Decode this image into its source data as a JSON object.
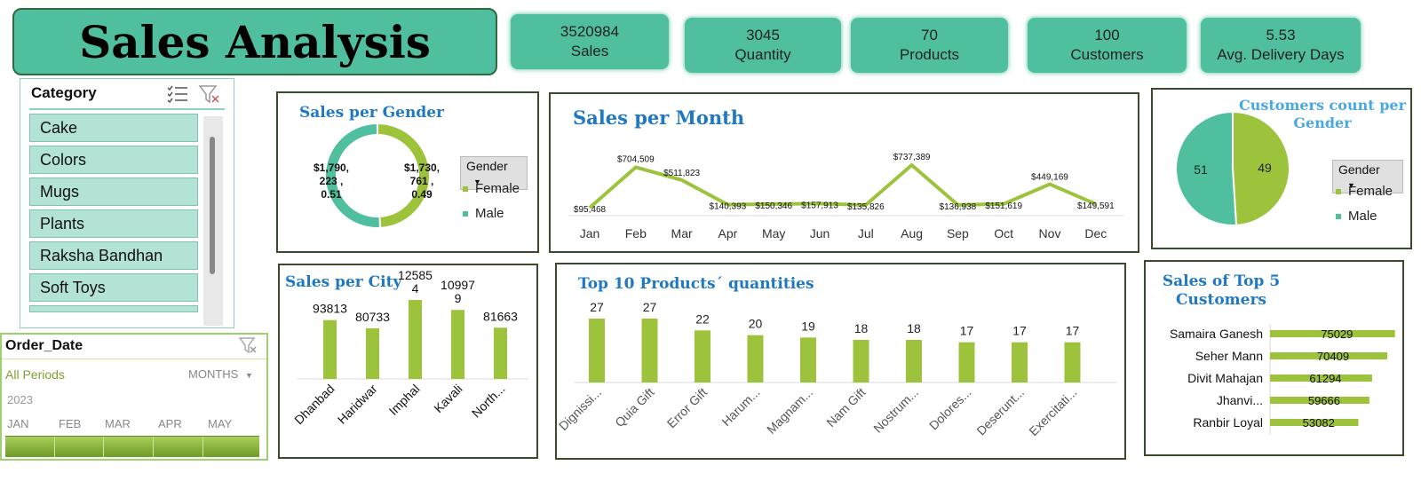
{
  "header": {
    "title": "Sales Analysis"
  },
  "kpis": [
    {
      "value": "3520984",
      "label": "Sales"
    },
    {
      "value": "3045",
      "label": "Quantity"
    },
    {
      "value": "70",
      "label": "Products"
    },
    {
      "value": "100",
      "label": "Customers"
    },
    {
      "value": "5.53",
      "label": "Avg. Delivery Days"
    }
  ],
  "category_slicer": {
    "title": "Category",
    "items": [
      "Cake",
      "Colors",
      "Mugs",
      "Plants",
      "Raksha Bandhan",
      "Soft Toys"
    ]
  },
  "timeline": {
    "title": "Order_Date",
    "period": "All Periods",
    "unit": "MONTHS",
    "year": "2023",
    "months": [
      "JAN",
      "FEB",
      "MAR",
      "APR",
      "MAY"
    ]
  },
  "colors": {
    "accent": "#4fbf9f",
    "bar": "#9dc33c",
    "title": "#1f78c1",
    "male": "#4fbf9f",
    "female": "#9dc33c"
  },
  "chart_data": [
    {
      "id": "sales_per_gender",
      "type": "pie",
      "title": "Sales per Gender",
      "legend_title": "Gender",
      "labels": [
        "Female",
        "Male"
      ],
      "values": [
        1730761,
        1790223
      ],
      "shares": [
        0.49,
        0.51
      ],
      "data_labels": [
        "$1,730,\n761 ,\n0.49",
        "$1,790,\n223 ,\n0.51"
      ]
    },
    {
      "id": "sales_per_month",
      "type": "line",
      "title": "Sales per Month",
      "categories": [
        "Jan",
        "Feb",
        "Mar",
        "Apr",
        "May",
        "Jun",
        "Jul",
        "Aug",
        "Sep",
        "Oct",
        "Nov",
        "Dec"
      ],
      "values": [
        95468,
        704509,
        511823,
        140393,
        150346,
        157913,
        135826,
        737389,
        136938,
        151619,
        449169,
        149591
      ],
      "labels": [
        "$95,468",
        "$704,509",
        "$511,823",
        "$140,393",
        "$150,346",
        "$157,913",
        "$135,826",
        "$737,389",
        "$136,938",
        "$151,619",
        "$449,169",
        "$149,591"
      ]
    },
    {
      "id": "customers_per_gender",
      "type": "pie",
      "title": "Customers count per Gender",
      "legend_title": "Gender",
      "labels": [
        "Female",
        "Male"
      ],
      "values": [
        49,
        51
      ]
    },
    {
      "id": "sales_per_city",
      "type": "bar",
      "title": "Sales per City",
      "categories": [
        "Dhanbad",
        "Haridwar",
        "Imphal",
        "Kavali",
        "North..."
      ],
      "values": [
        93813,
        80733,
        125854,
        109979,
        81663
      ],
      "labels": [
        "93813",
        "80733",
        "12585\n4",
        "10997\n9",
        "81663"
      ],
      "ylim": [
        0,
        140000
      ]
    },
    {
      "id": "top10_products",
      "type": "bar",
      "title": "Top 10 Products´ quantities",
      "categories": [
        "Dignissi...",
        "Quia Gift",
        "Error Gift",
        "Harum...",
        "Magnam...",
        "Nam Gift",
        "Nostrum...",
        "Dolores...",
        "Deserunt...",
        "Exercitati..."
      ],
      "values": [
        27,
        27,
        22,
        20,
        19,
        18,
        18,
        17,
        17,
        17
      ],
      "ylim": [
        0,
        30
      ]
    },
    {
      "id": "top5_customers",
      "type": "bar",
      "title": "Sales of Top 5 Customers",
      "categories": [
        "Samaira Ganesh",
        "Seher Mann",
        "Divit Mahajan",
        "Jhanvi...",
        "Ranbir Loyal"
      ],
      "values": [
        75029,
        70409,
        61294,
        59666,
        53082
      ],
      "xlim": [
        0,
        80000
      ]
    }
  ]
}
